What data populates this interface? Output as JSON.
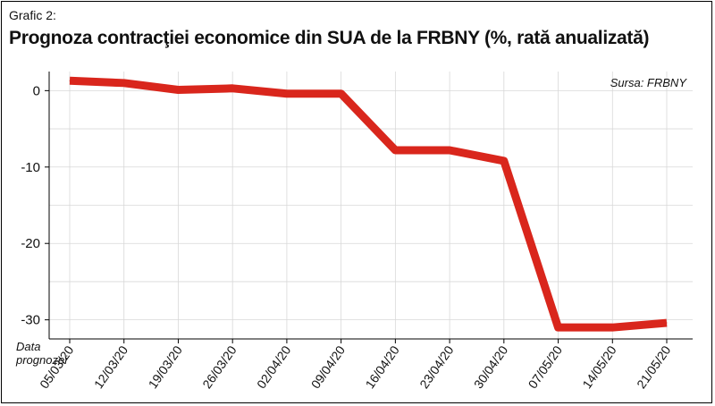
{
  "header": {
    "subtitle": "Grafic 2:",
    "title": "Prognoza contracţiei economice din SUA de la FRBNY (%, rată anualizată)"
  },
  "source_note": "Sursa: FRBNY",
  "xaxis_caption": [
    "Data",
    "prognozei"
  ],
  "colors": {
    "line": "#d9261c",
    "grid": "#d8d8d8",
    "axis": "#000000"
  },
  "chart_data": {
    "type": "line",
    "title": "Prognoza contracţiei economice din SUA de la FRBNY (%, rată anualizată)",
    "xlabel": "Data prognozei",
    "ylabel": "",
    "categories": [
      "05/03/20",
      "12/03/20",
      "19/03/20",
      "26/03/20",
      "02/04/20",
      "09/04/20",
      "16/04/20",
      "23/04/20",
      "30/04/20",
      "07/05/20",
      "14/05/20",
      "21/05/20"
    ],
    "series": [
      {
        "values": [
          1.3,
          1.0,
          0.1,
          0.3,
          -0.4,
          -0.4,
          -7.8,
          -7.8,
          -9.2,
          -31.0,
          -31.0,
          -30.4
        ]
      }
    ],
    "ylim": [
      -32.5,
      2.5
    ],
    "yticks": [
      0,
      -10,
      -20,
      -30
    ],
    "grid": true,
    "legend": "none"
  }
}
